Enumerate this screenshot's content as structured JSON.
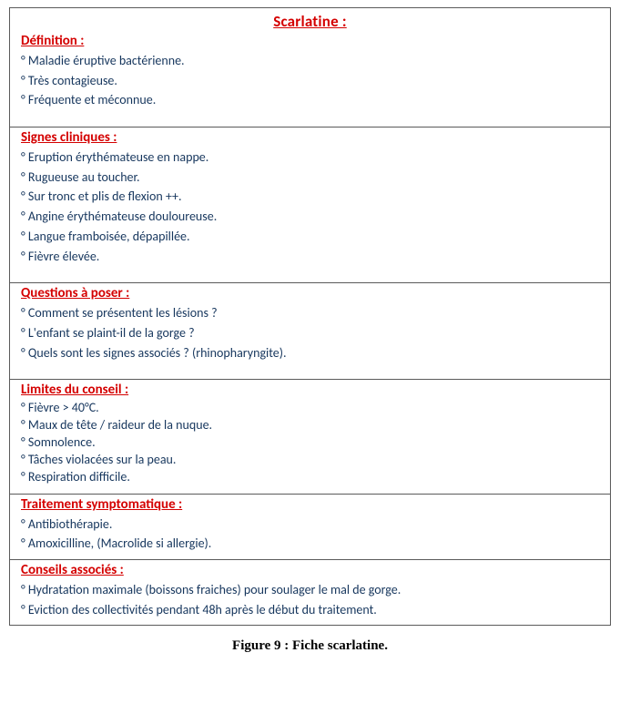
{
  "colors": {
    "heading_red": "#d40000",
    "body_blue": "#16365d",
    "border": "#5a5a5a",
    "caption_black": "#000000",
    "background": "#ffffff"
  },
  "fonts": {
    "body_family": "Segoe UI / Calibri",
    "body_size_pt": 11,
    "heading_size_pt": 11,
    "title_size_pt": 13,
    "caption_family": "Times New Roman",
    "caption_size_pt": 11,
    "caption_weight": "bold"
  },
  "card": {
    "title": "Scarlatine :",
    "sections": [
      {
        "heading": "Définition :",
        "compact": false,
        "items": [
          "Maladie éruptive bactérienne.",
          "Très contagieuse.",
          "Fréquente et méconnue."
        ]
      },
      {
        "heading": "Signes cliniques :",
        "compact": false,
        "items": [
          "Eruption érythémateuse en nappe.",
          "Rugueuse au toucher.",
          "Sur tronc et plis de flexion ++.",
          "Angine érythémateuse douloureuse.",
          "Langue framboisée, dépapillée.",
          "Fièvre élevée."
        ]
      },
      {
        "heading": "Questions à poser :",
        "compact": false,
        "items": [
          "Comment se présentent les lésions ?",
          "L'enfant se plaint-il de la gorge ?",
          "Quels sont les signes associés ? (rhinopharyngite)."
        ]
      },
      {
        "heading": "Limites du conseil :",
        "compact": true,
        "items": [
          "Fièvre > 40°C.",
          "Maux de tête / raideur de la nuque.",
          "Somnolence.",
          "Tâches violacées sur la peau.",
          "Respiration difficile."
        ]
      },
      {
        "heading": "Traitement symptomatique :",
        "compact": false,
        "tight": true,
        "items": [
          "Antibiothérapie.",
          "Amoxicilline, (Macrolide si allergie)."
        ]
      },
      {
        "heading": "Conseils associés :",
        "compact": false,
        "tight": true,
        "items": [
          "Hydratation maximale (boissons fraiches) pour soulager le mal de gorge.",
          "Eviction des collectivités pendant 48h après le début du traitement."
        ]
      }
    ]
  },
  "caption": "Figure 9 : Fiche scarlatine."
}
